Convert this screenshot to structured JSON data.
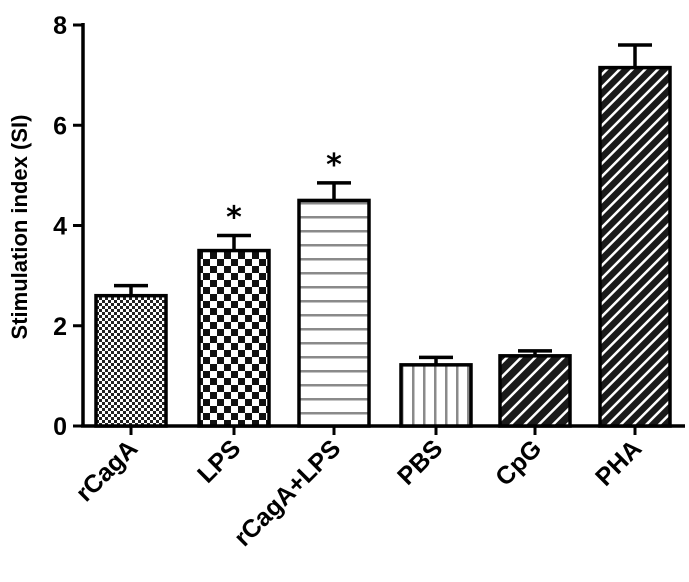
{
  "chart_data": {
    "type": "bar",
    "title": "",
    "xlabel": "",
    "ylabel": "Stimulation index (SI)",
    "ylim": [
      0,
      8
    ],
    "yticks": [
      0,
      2,
      4,
      6,
      8
    ],
    "grid": false,
    "legend": "none",
    "categories": [
      "rCagA",
      "LPS",
      "rCagA+LPS",
      "PBS",
      "CpG",
      "PHA"
    ],
    "series": [
      {
        "values": [
          2.6,
          3.5,
          4.5,
          1.22,
          1.4,
          7.15
        ],
        "errors": [
          0.2,
          0.3,
          0.35,
          0.15,
          0.1,
          0.45
        ]
      }
    ],
    "significance": [
      "",
      "*",
      "*",
      "",
      "",
      ""
    ],
    "patterns": [
      "fine-check",
      "checkerboard",
      "horizontal-stripes",
      "vertical-stripes",
      "diagonal-hatch",
      "diagonal-hatch-dense"
    ],
    "colors": {
      "stroke": "#000000",
      "fill_dark": "#1a1a1a",
      "fill_gray": "#9a9a9a"
    }
  }
}
